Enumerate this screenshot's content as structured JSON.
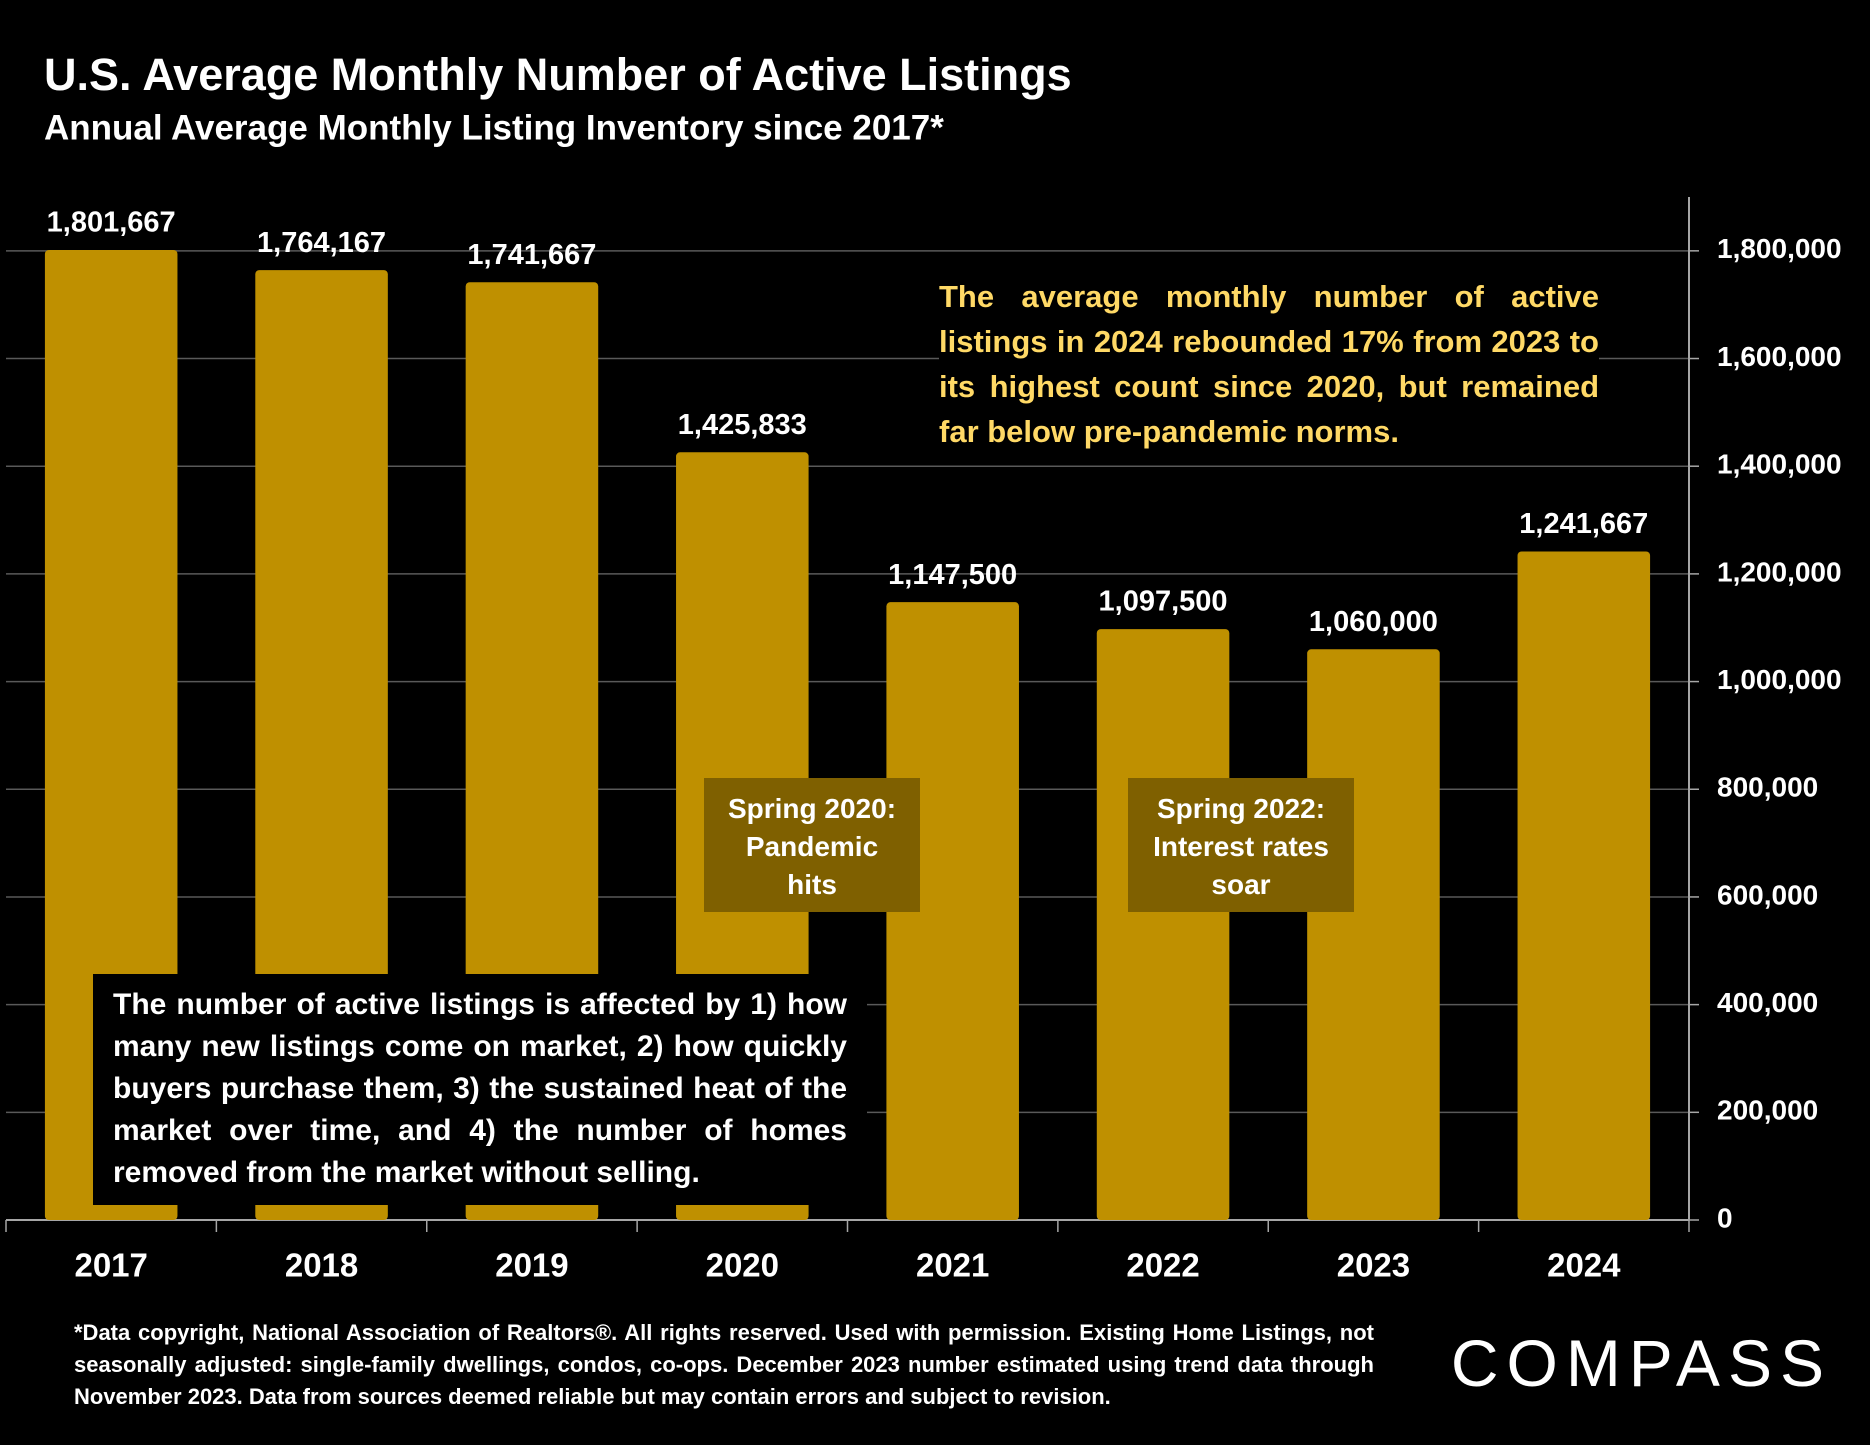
{
  "chart_data": {
    "type": "bar",
    "title": "U.S. Average Monthly Number of Active Listings",
    "subtitle": "Annual Average Monthly Listing Inventory since 2017*",
    "categories": [
      "2017",
      "2018",
      "2019",
      "2020",
      "2021",
      "2022",
      "2023",
      "2024"
    ],
    "values": [
      1801667,
      1764167,
      1741667,
      1425833,
      1147500,
      1097500,
      1060000,
      1241667
    ],
    "value_labels": [
      "1,801,667",
      "1,764,167",
      "1,741,667",
      "1,425,833",
      "1,147,500",
      "1,097,500",
      "1,060,000",
      "1,241,667"
    ],
    "color": "#bf9000",
    "ylim": [
      0,
      1900000
    ],
    "yticks": [
      0,
      {
        "value": 200000,
        "label": "200,000"
      },
      {
        "value": 400000,
        "label": "400,000"
      },
      {
        "value": 600000,
        "label": "600,000"
      },
      {
        "value": 800000,
        "label": "800,000"
      },
      {
        "value": 1000000,
        "label": "1,000,000"
      },
      {
        "value": 1200000,
        "label": "1,200,000"
      },
      {
        "value": 1400000,
        "label": "1,400,000"
      },
      {
        "value": 1600000,
        "label": "1,600,000"
      },
      {
        "value": 1800000,
        "label": "1,800,000"
      }
    ],
    "grid": true,
    "annotations": [
      "The average monthly number of active listings in 2024 rebounded 17% from 2023 to its highest count since 2020, but remained far below pre-pandemic norms.",
      "Spring 2020: Pandemic hits",
      "Spring 2022: Interest rates soar",
      "The number of active listings is affected by 1) how many new listings come on market, 2) how quickly buyers purchase them, 3) the sustained heat of the market over time, and 4) the number of homes removed from the market without selling."
    ],
    "footnote": "*Data copyright, National Association of Realtors®. All rights reserved. Used with permission. Existing Home Listings, not seasonally adjusted:  single-family dwellings, condos, co-ops. December 2023 number estimated using trend data through November 2023. Data from sources deemed reliable but may contain errors and subject to revision.",
    "logo": "COMPASS"
  }
}
